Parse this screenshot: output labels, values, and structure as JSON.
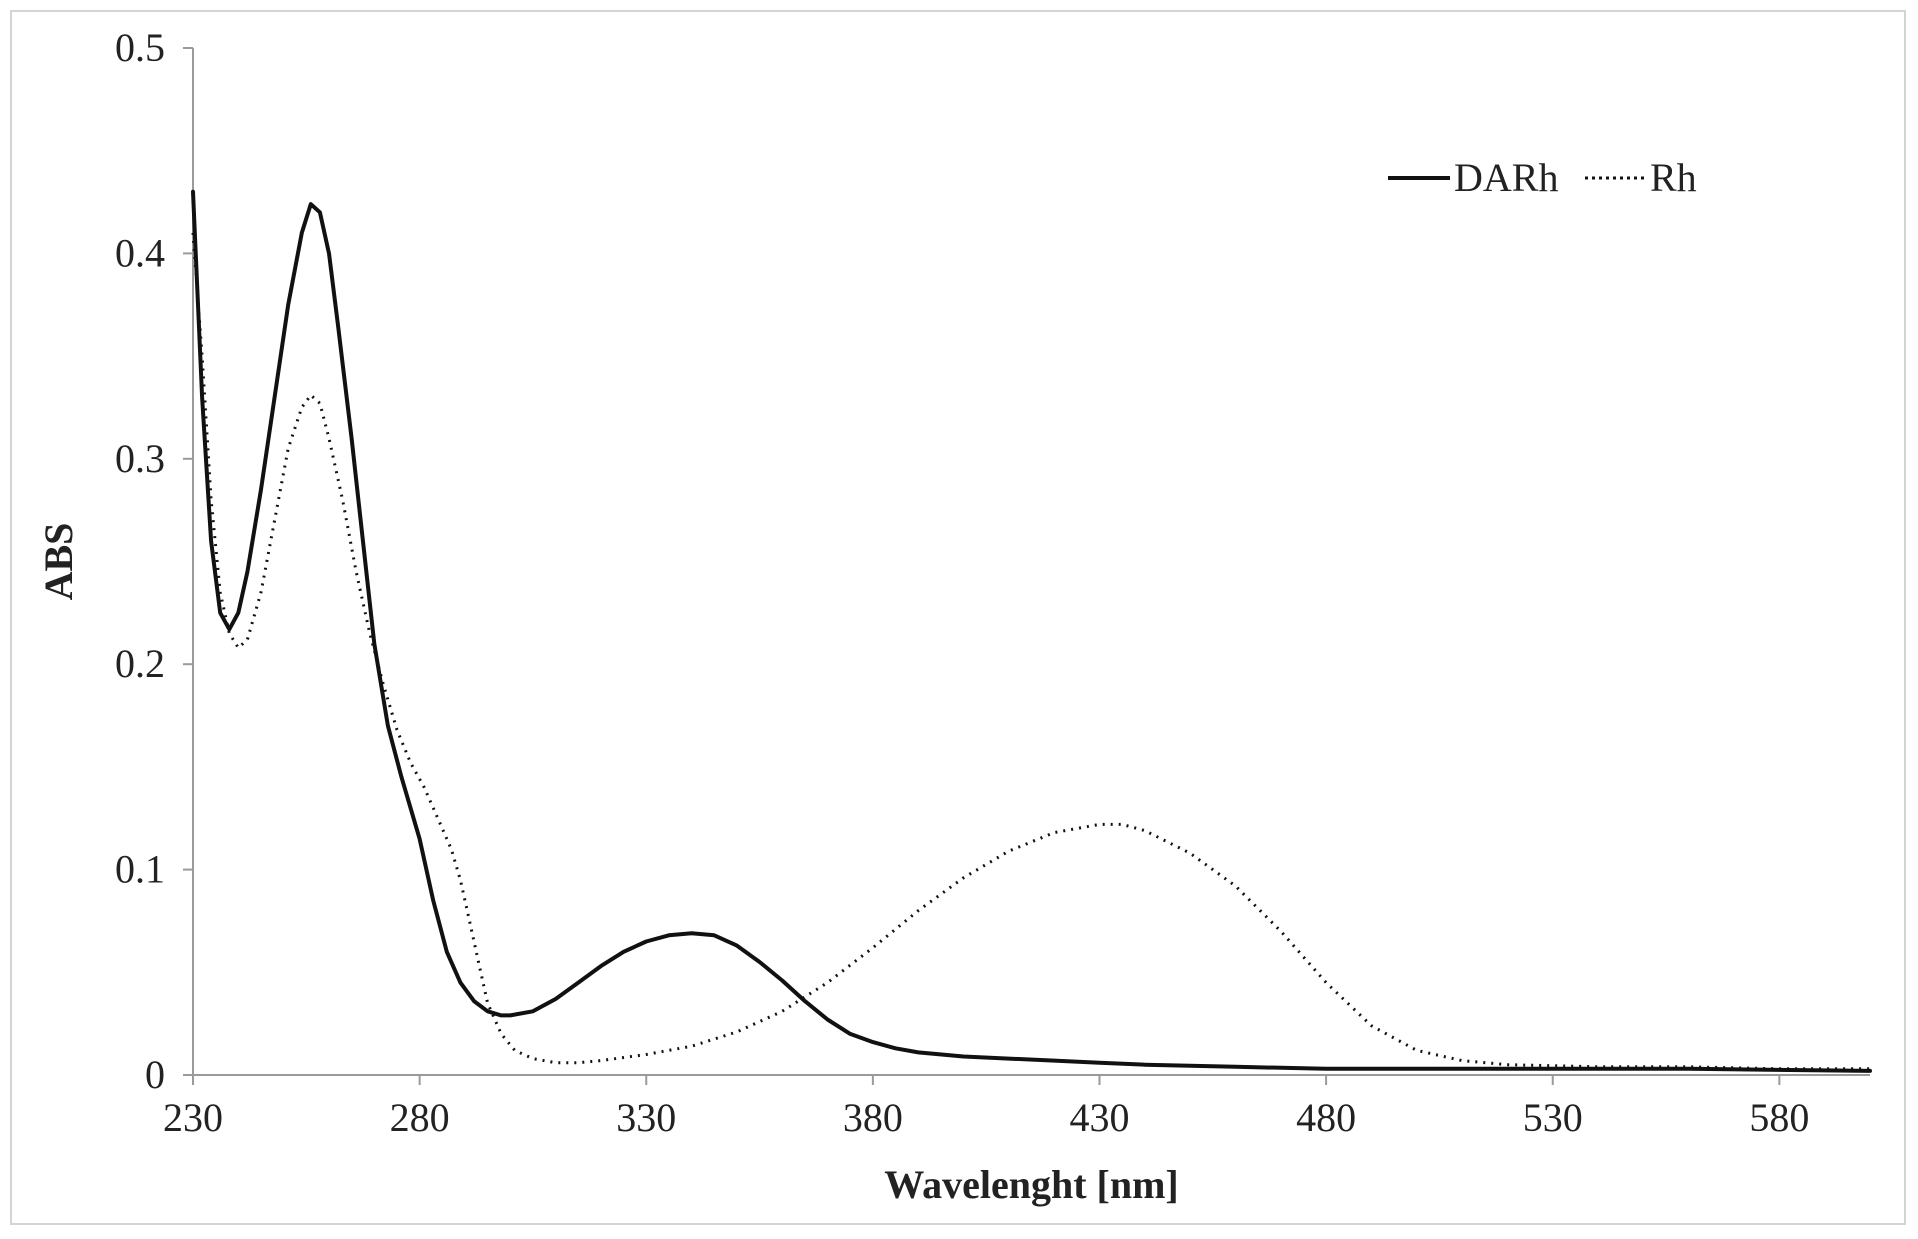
{
  "chart_data": {
    "type": "line",
    "title": "",
    "xlabel": "Wavelenght [nm]",
    "ylabel": "ABS",
    "xlim": [
      230,
      600
    ],
    "ylim": [
      0,
      0.5
    ],
    "x_ticks": [
      230,
      280,
      330,
      380,
      430,
      480,
      530,
      580
    ],
    "y_ticks": [
      0,
      0.1,
      0.2,
      0.3,
      0.4,
      0.5
    ],
    "y_tick_labels": [
      "0",
      "0.1",
      "0.2",
      "0.3",
      "0.4",
      "0.5"
    ],
    "grid": false,
    "legend_position": "top-right",
    "series": [
      {
        "name": "DARh",
        "style": "solid",
        "color": "#111111",
        "points": [
          [
            230,
            0.43
          ],
          [
            232,
            0.33
          ],
          [
            234,
            0.26
          ],
          [
            236,
            0.225
          ],
          [
            238,
            0.217
          ],
          [
            240,
            0.225
          ],
          [
            242,
            0.245
          ],
          [
            245,
            0.285
          ],
          [
            248,
            0.33
          ],
          [
            251,
            0.375
          ],
          [
            254,
            0.41
          ],
          [
            256,
            0.424
          ],
          [
            258,
            0.42
          ],
          [
            260,
            0.4
          ],
          [
            262,
            0.365
          ],
          [
            265,
            0.31
          ],
          [
            268,
            0.25
          ],
          [
            270,
            0.21
          ],
          [
            273,
            0.17
          ],
          [
            276,
            0.145
          ],
          [
            280,
            0.115
          ],
          [
            283,
            0.085
          ],
          [
            286,
            0.06
          ],
          [
            289,
            0.045
          ],
          [
            292,
            0.036
          ],
          [
            295,
            0.031
          ],
          [
            298,
            0.029
          ],
          [
            300,
            0.029
          ],
          [
            305,
            0.031
          ],
          [
            310,
            0.037
          ],
          [
            315,
            0.045
          ],
          [
            320,
            0.053
          ],
          [
            325,
            0.06
          ],
          [
            330,
            0.065
          ],
          [
            335,
            0.068
          ],
          [
            340,
            0.069
          ],
          [
            345,
            0.068
          ],
          [
            350,
            0.063
          ],
          [
            355,
            0.055
          ],
          [
            360,
            0.046
          ],
          [
            365,
            0.036
          ],
          [
            370,
            0.027
          ],
          [
            375,
            0.02
          ],
          [
            380,
            0.016
          ],
          [
            385,
            0.013
          ],
          [
            390,
            0.011
          ],
          [
            400,
            0.009
          ],
          [
            410,
            0.008
          ],
          [
            420,
            0.007
          ],
          [
            430,
            0.006
          ],
          [
            440,
            0.005
          ],
          [
            450,
            0.0045
          ],
          [
            460,
            0.004
          ],
          [
            480,
            0.003
          ],
          [
            500,
            0.003
          ],
          [
            530,
            0.003
          ],
          [
            560,
            0.003
          ],
          [
            600,
            0.002
          ]
        ]
      },
      {
        "name": "Rh",
        "style": "dotted",
        "color": "#111111",
        "points": [
          [
            230,
            0.41
          ],
          [
            232,
            0.35
          ],
          [
            234,
            0.28
          ],
          [
            236,
            0.235
          ],
          [
            238,
            0.215
          ],
          [
            240,
            0.208
          ],
          [
            242,
            0.212
          ],
          [
            245,
            0.235
          ],
          [
            248,
            0.27
          ],
          [
            251,
            0.305
          ],
          [
            254,
            0.325
          ],
          [
            256,
            0.331
          ],
          [
            258,
            0.327
          ],
          [
            260,
            0.31
          ],
          [
            263,
            0.28
          ],
          [
            266,
            0.245
          ],
          [
            269,
            0.215
          ],
          [
            272,
            0.19
          ],
          [
            275,
            0.168
          ],
          [
            278,
            0.152
          ],
          [
            281,
            0.14
          ],
          [
            284,
            0.125
          ],
          [
            287,
            0.11
          ],
          [
            289,
            0.095
          ],
          [
            291,
            0.075
          ],
          [
            293,
            0.055
          ],
          [
            295,
            0.035
          ],
          [
            298,
            0.02
          ],
          [
            301,
            0.012
          ],
          [
            305,
            0.008
          ],
          [
            310,
            0.006
          ],
          [
            315,
            0.006
          ],
          [
            320,
            0.007
          ],
          [
            330,
            0.01
          ],
          [
            340,
            0.014
          ],
          [
            350,
            0.021
          ],
          [
            360,
            0.031
          ],
          [
            370,
            0.045
          ],
          [
            380,
            0.062
          ],
          [
            390,
            0.08
          ],
          [
            400,
            0.096
          ],
          [
            410,
            0.109
          ],
          [
            420,
            0.118
          ],
          [
            430,
            0.122
          ],
          [
            435,
            0.122
          ],
          [
            440,
            0.119
          ],
          [
            450,
            0.108
          ],
          [
            460,
            0.092
          ],
          [
            470,
            0.07
          ],
          [
            480,
            0.045
          ],
          [
            490,
            0.024
          ],
          [
            500,
            0.012
          ],
          [
            510,
            0.007
          ],
          [
            520,
            0.005
          ],
          [
            540,
            0.004
          ],
          [
            560,
            0.004
          ],
          [
            580,
            0.003
          ],
          [
            600,
            0.003
          ]
        ]
      }
    ]
  }
}
